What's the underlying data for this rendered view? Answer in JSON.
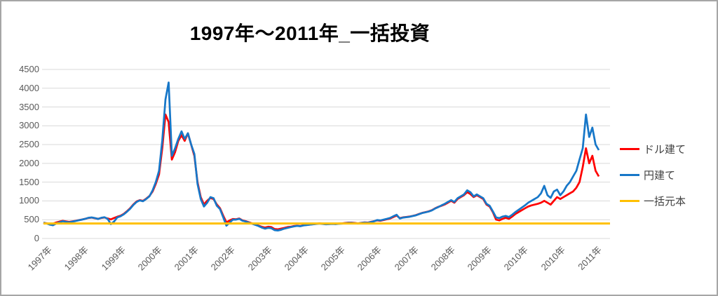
{
  "title": "1997年～2011年_一括投資",
  "colors": {
    "dollar_series": "#ff0000",
    "yen_series": "#1777c8",
    "principal_line": "#ffc000",
    "gridline": "#d9d9d9",
    "axis_text": "#595959",
    "legend_text": "#404040",
    "border": "#a6a6a6"
  },
  "chart_data": {
    "type": "line",
    "title": "1997年～2011年_一括投資",
    "xlabel": "",
    "ylabel": "",
    "ylim": [
      0,
      4500
    ],
    "y_ticks": [
      4500,
      4000,
      3500,
      3000,
      2500,
      2000,
      1500,
      1000,
      500,
      0
    ],
    "x_tick_labels": [
      "1997年",
      "1998年",
      "1999年",
      "2000年",
      "2001年",
      "2002年",
      "2003年",
      "2004年",
      "2005年",
      "2006年",
      "2007年",
      "2008年",
      "2009年",
      "2010年",
      "2010年",
      "2011年"
    ],
    "grid": true,
    "legend_position": "right",
    "x_sampling": "monthly points from Jan 1997 to Jun 2011, plotted evenly across the axis",
    "series": [
      {
        "name": "ドル建て",
        "color": "#ff0000",
        "values": [
          420,
          405,
          380,
          395,
          425,
          450,
          468,
          455,
          440,
          455,
          470,
          490,
          505,
          525,
          548,
          556,
          540,
          524,
          546,
          560,
          532,
          508,
          545,
          578,
          605,
          655,
          725,
          805,
          905,
          985,
          1020,
          1000,
          1060,
          1130,
          1255,
          1455,
          1705,
          2400,
          3300,
          3100,
          2100,
          2300,
          2600,
          2750,
          2600,
          2800,
          2500,
          2200,
          1500,
          1100,
          905,
          1005,
          1080,
          1050,
          905,
          805,
          605,
          430,
          480,
          520,
          512,
          532,
          482,
          462,
          432,
          402,
          372,
          342,
          312,
          292,
          312,
          302,
          252,
          242,
          262,
          282,
          302,
          312,
          332,
          342,
          332,
          352,
          362,
          372,
          382,
          392,
          402,
          392,
          382,
          387,
          392,
          387,
          397,
          402,
          412,
          422,
          422,
          412,
          402,
          417,
          427,
          422,
          442,
          462,
          482,
          472,
          492,
          512,
          532,
          572,
          612,
          542,
          562,
          572,
          582,
          602,
          622,
          652,
          682,
          702,
          722,
          752,
          802,
          842,
          872,
          905,
          952,
          1002,
          952,
          1052,
          1102,
          1152,
          1232,
          1182,
          1102,
          1152,
          1102,
          1052,
          902,
          852,
          702,
          502,
          482,
          522,
          552,
          522,
          582,
          652,
          702,
          752,
          802,
          852,
          882,
          902,
          922,
          952,
          1002,
          952,
          902,
          1002,
          1102,
          1052,
          1102,
          1152,
          1202,
          1252,
          1352,
          1502,
          1902,
          2402,
          2002,
          2202,
          1802,
          1652
        ]
      },
      {
        "name": "円建て",
        "color": "#1777c8",
        "values": [
          422,
          400,
          368,
          352,
          400,
          432,
          460,
          445,
          430,
          450,
          465,
          485,
          502,
          522,
          550,
          560,
          545,
          520,
          550,
          565,
          520,
          382,
          452,
          562,
          592,
          642,
          712,
          792,
          892,
          972,
          1012,
          992,
          1052,
          1122,
          1282,
          1502,
          1802,
          2602,
          3702,
          4152,
          2202,
          2402,
          2652,
          2852,
          2652,
          2802,
          2502,
          2252,
          1452,
          1052,
          852,
          952,
          1102,
          1072,
          872,
          782,
          562,
          342,
          422,
          502,
          502,
          522,
          472,
          452,
          422,
          392,
          362,
          332,
          292,
          262,
          282,
          272,
          222,
          212,
          232,
          262,
          282,
          302,
          322,
          337,
          327,
          347,
          357,
          367,
          377,
          387,
          397,
          387,
          377,
          382,
          387,
          382,
          392,
          397,
          407,
          417,
          417,
          407,
          397,
          412,
          422,
          417,
          437,
          457,
          492,
          482,
          502,
          522,
          547,
          592,
          632,
          532,
          557,
          567,
          577,
          597,
          617,
          647,
          677,
          697,
          717,
          747,
          797,
          837,
          882,
          922,
          972,
          1022,
          972,
          1072,
          1122,
          1172,
          1282,
          1232,
          1122,
          1172,
          1122,
          1072,
          922,
          872,
          722,
          562,
          542,
          582,
          602,
          572,
          632,
          702,
          762,
          822,
          882,
          952,
          1002,
          1052,
          1102,
          1202,
          1402,
          1152,
          1082,
          1252,
          1302,
          1152,
          1252,
          1402,
          1502,
          1652,
          1802,
          2102,
          2402,
          3302,
          2702,
          2952,
          2502,
          2352
        ]
      },
      {
        "name": "一括元本",
        "color": "#ffc000",
        "constant": 400
      }
    ]
  }
}
